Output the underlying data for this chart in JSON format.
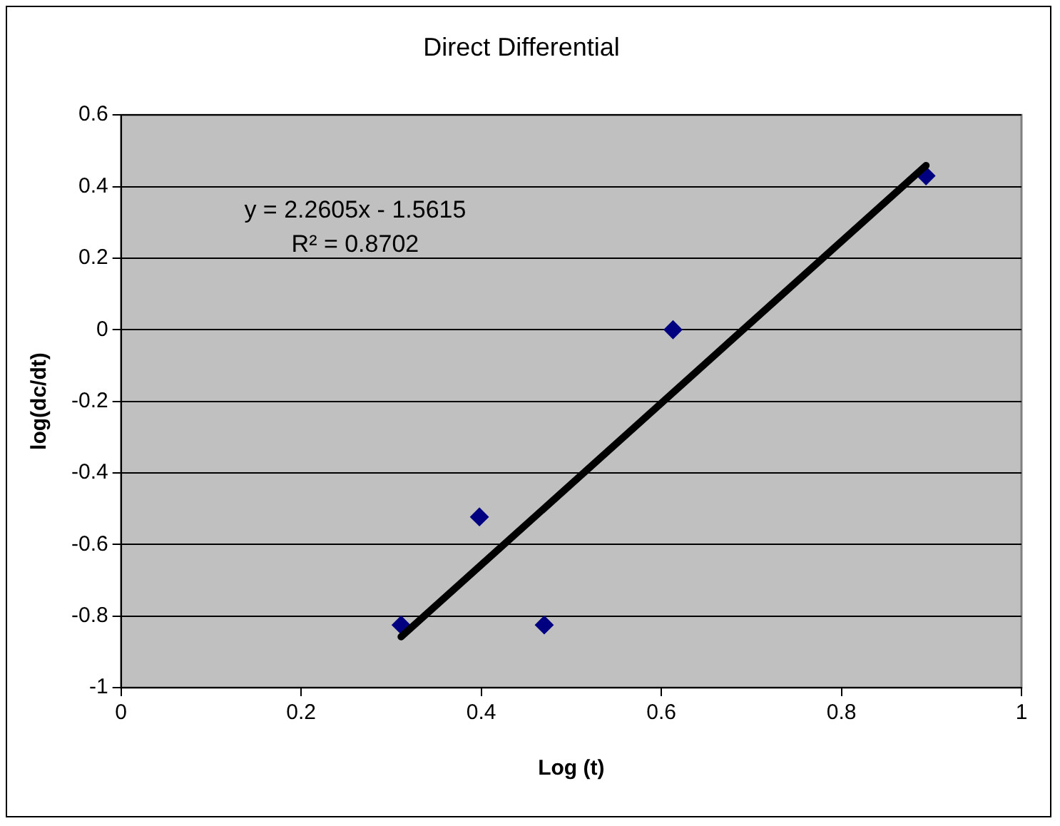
{
  "chart_data": {
    "type": "scatter",
    "title": "Direct Differential",
    "xlabel": "Log (t)",
    "ylabel": "log(dc/dt)",
    "annotations": [
      "y = 2.2605x - 1.5615",
      "R² = 0.8702"
    ],
    "xlim": [
      0,
      1
    ],
    "xticks": [
      0,
      0.2,
      0.4,
      0.6,
      0.8,
      1
    ],
    "ylim": [
      -1,
      0.6
    ],
    "yticks": [
      -1,
      -0.8,
      -0.6,
      -0.4,
      -0.2,
      0,
      0.2,
      0.4,
      0.6
    ],
    "grid": "y",
    "legend": false,
    "marker": "diamond",
    "series": [
      {
        "type": "scatter",
        "color": "#000080",
        "x": [
          0.311,
          0.398,
          0.47,
          0.613,
          0.894
        ],
        "values": [
          -0.825,
          -0.523,
          -0.825,
          0,
          0.43
        ]
      },
      {
        "type": "line",
        "color": "#000000",
        "marker": "none",
        "line_style": "solid",
        "x": [
          0.311,
          0.894
        ],
        "values": [
          -0.858,
          0.459
        ]
      }
    ]
  }
}
